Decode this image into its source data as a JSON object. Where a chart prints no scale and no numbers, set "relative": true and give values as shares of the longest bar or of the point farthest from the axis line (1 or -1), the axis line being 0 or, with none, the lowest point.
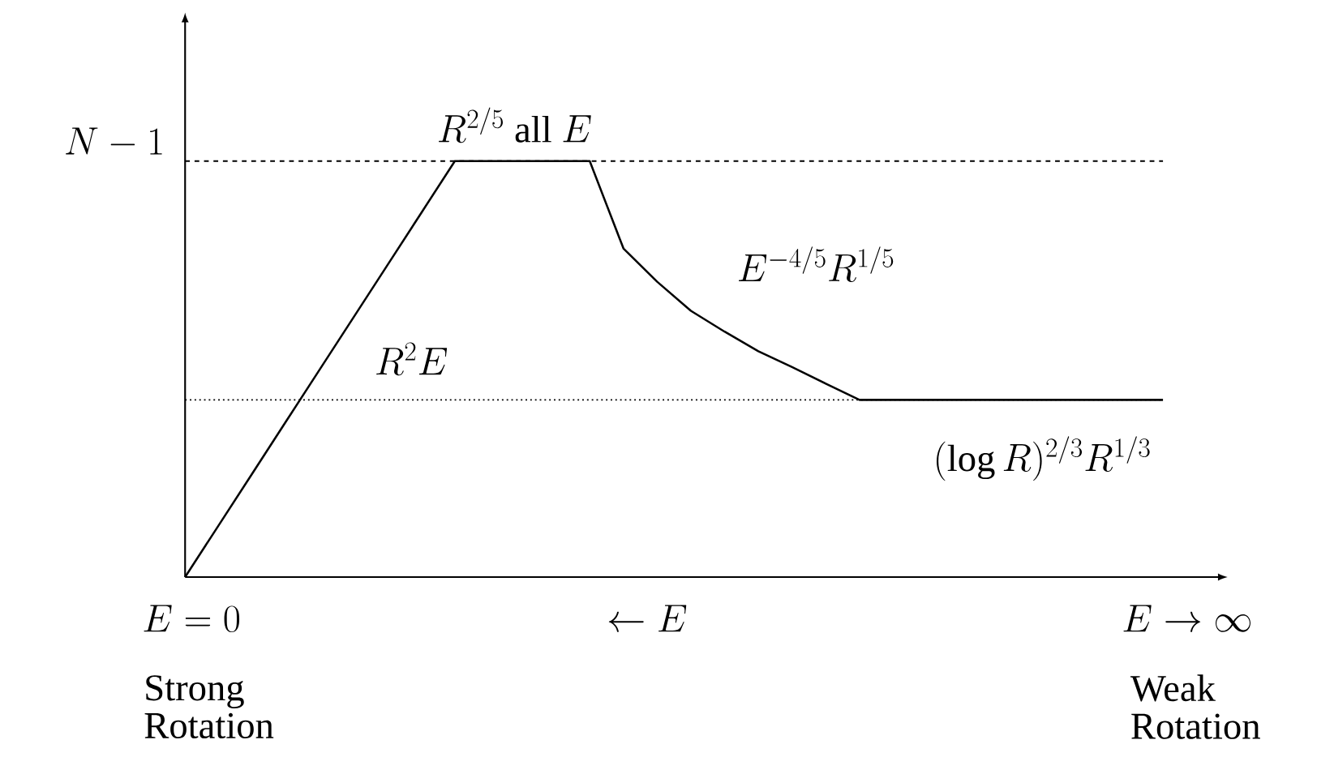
{
  "chart_data": {
    "type": "line",
    "relative": true,
    "categories": [
      null,
      null,
      null,
      null,
      null,
      null,
      null,
      null,
      null,
      null,
      null,
      null,
      null,
      null,
      null,
      null,
      null,
      null,
      null,
      null,
      null,
      null,
      null,
      null,
      null,
      null,
      null,
      null,
      null,
      null
    ],
    "series": [
      {
        "color": "#000000",
        "values": [
          0,
          0.125,
          0.25,
          0.375,
          0.5,
          0.625,
          0.75,
          0.875,
          1,
          1,
          1,
          1,
          1,
          0.79,
          0.71,
          0.64,
          0.59,
          0.543,
          0.505,
          0.465,
          0.426,
          0.426,
          0.426,
          0.426,
          0.426,
          0.426,
          0.426,
          0.426,
          0.426,
          0.426
        ]
      }
    ],
    "line_style": "solid",
    "ref_lines": [
      {
        "axis": "y",
        "value": 1,
        "label": "N-1",
        "line_style": "dashed",
        "color": "#000000"
      },
      {
        "axis": "y",
        "value": 0.426,
        "line_style": "dotted",
        "color": "#000000"
      }
    ],
    "annotations": [
      "R^{2/5}\\ \\mathrm{all}\\ E",
      "E^{-4/5}R^{1/5}",
      "R^2E",
      "(\\log R)^{2/3}R^{1/3}",
      "E=0",
      "\\leftarrow E",
      "E\\to\\infty",
      "Strong Rotation",
      "Weak Rotation"
    ]
  }
}
